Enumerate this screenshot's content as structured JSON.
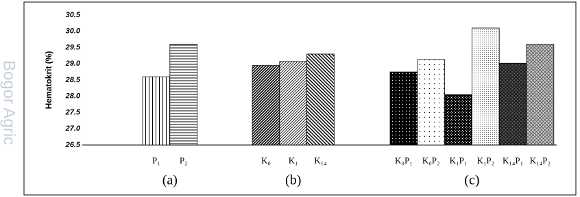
{
  "watermark": "Bogor Agric",
  "chart_data": {
    "type": "bar",
    "ylabel": "Hematokrit (%)",
    "ylim": [
      26.5,
      30.5
    ],
    "yticks": [
      26.5,
      {
        "value": 27,
        "label": "27.0"
      },
      27.5,
      {
        "value": 28,
        "label": "28.0"
      },
      28.5,
      {
        "value": 29,
        "label": "29.0"
      },
      29.5,
      {
        "value": 30,
        "label": "30.0"
      },
      30.5
    ],
    "grid": false,
    "groups": [
      {
        "label": "(a)",
        "categories": [
          "P₁",
          "P₂"
        ],
        "values": [
          28.6,
          29.6
        ],
        "patterns": [
          "vertical",
          "horizontal"
        ]
      },
      {
        "label": "(b)",
        "categories": [
          "K₀",
          "K₁",
          "K₁₄"
        ],
        "values": [
          28.95,
          29.07,
          29.3
        ],
        "patterns": [
          "diag-dense",
          "diag-light",
          "diag-back"
        ]
      },
      {
        "label": "(c)",
        "categories": [
          "K₀P₁",
          "K₀P₂",
          "K₁P₁",
          "K₁P₂",
          "K₁₄P₁",
          "K₁₄P₂"
        ],
        "values": [
          28.75,
          29.13,
          28.05,
          30.1,
          29.02,
          29.6
        ],
        "patterns": [
          "dots-black",
          "dots-sparse",
          "checker-black",
          "dots-light",
          "cross-dark",
          "cross-light"
        ]
      }
    ]
  }
}
